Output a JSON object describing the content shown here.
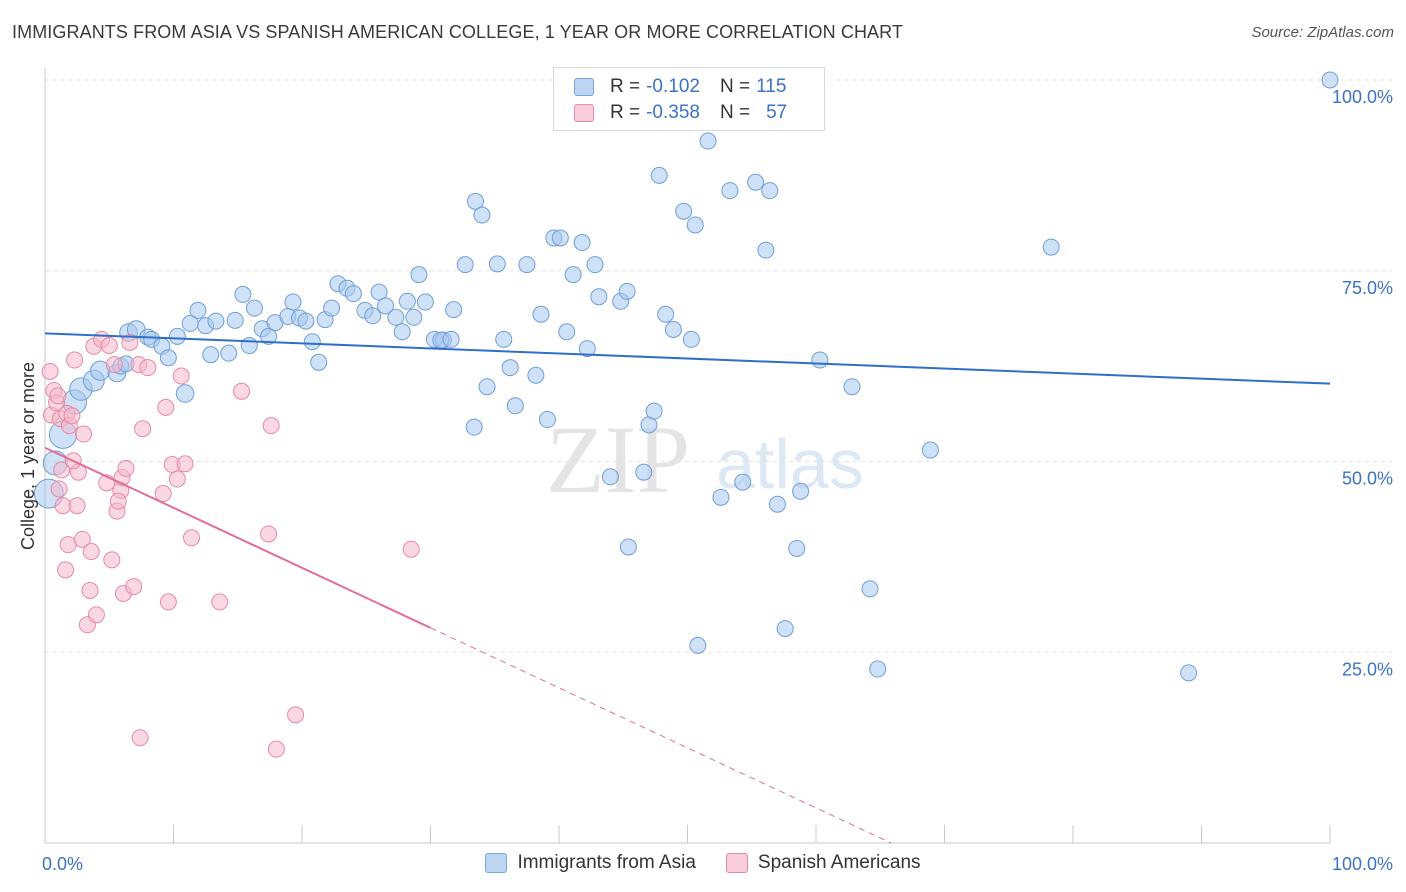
{
  "header": {
    "title": "IMMIGRANTS FROM ASIA VS SPANISH AMERICAN COLLEGE, 1 YEAR OR MORE CORRELATION CHART",
    "source": "Source: ZipAtlas.com"
  },
  "watermark": {
    "zip": "ZIP",
    "atlas": "atlas"
  },
  "stats_legend": {
    "rows": [
      {
        "r_label": "R =",
        "r_value": "-0.102",
        "n_label": "N =",
        "n_value": "115",
        "color": "#a8c8ee"
      },
      {
        "r_label": "R =",
        "r_value": "-0.358",
        "n_label": "N =",
        "n_value": "57",
        "color": "#f5b8cb"
      }
    ]
  },
  "chart_data": {
    "type": "scatter",
    "title": "IMMIGRANTS FROM ASIA VS SPANISH AMERICAN COLLEGE, 1 YEAR OR MORE CORRELATION CHART",
    "xlabel": "",
    "ylabel": "College, 1 year or more",
    "xlim": [
      0,
      100
    ],
    "ylim": [
      0,
      100
    ],
    "x_tick_labels": [
      "0.0%",
      "100.0%"
    ],
    "y_tick_labels": [
      {
        "value": 25,
        "label": "25.0%"
      },
      {
        "value": 50,
        "label": "50.0%"
      },
      {
        "value": 75,
        "label": "75.0%"
      },
      {
        "value": 100,
        "label": "100.0%"
      }
    ],
    "grid": true,
    "legend_position": "bottom",
    "series": [
      {
        "name": "Immigrants from Asia",
        "color": "#a8c8ee",
        "edge": "#6f9fd6",
        "line_color": "#2f6fc8",
        "trend": {
          "x0": 0,
          "y0": 66.8,
          "x1": 100,
          "y1": 60.2,
          "dashed_to": 100
        },
        "points": [
          [
            0.3,
            45.8,
            1.8
          ],
          [
            0.8,
            49.8,
            1.5
          ],
          [
            1.4,
            53.5,
            1.7
          ],
          [
            2.3,
            57.8,
            1.5
          ],
          [
            2.8,
            59.5,
            1.4
          ],
          [
            3.8,
            60.6,
            1.3
          ],
          [
            4.3,
            61.9,
            1.2
          ],
          [
            5.6,
            61.6,
            1.1
          ],
          [
            5.9,
            62.5,
            1.0
          ],
          [
            6.3,
            62.8,
            1.0
          ],
          [
            6.5,
            66.9,
            1.1
          ],
          [
            7.1,
            67.3,
            1.1
          ],
          [
            8.0,
            66.3,
            1.0
          ],
          [
            8.3,
            66.0,
            1.0
          ],
          [
            9.1,
            65.1,
            1.0
          ],
          [
            9.6,
            63.6,
            1.0
          ],
          [
            10.3,
            66.4,
            1.0
          ],
          [
            10.9,
            58.9,
            1.1
          ],
          [
            11.3,
            68.1,
            1.0
          ],
          [
            11.9,
            69.8,
            1.0
          ],
          [
            12.5,
            67.8,
            1.0
          ],
          [
            12.9,
            64.0,
            1.0
          ],
          [
            13.3,
            68.4,
            1.0
          ],
          [
            14.3,
            64.2,
            1.0
          ],
          [
            14.8,
            68.5,
            1.0
          ],
          [
            15.4,
            71.9,
            1.0
          ],
          [
            15.9,
            65.2,
            1.0
          ],
          [
            16.3,
            70.1,
            1.0
          ],
          [
            16.9,
            67.4,
            1.0
          ],
          [
            17.4,
            66.4,
            1.0
          ],
          [
            17.9,
            68.2,
            1.0
          ],
          [
            18.9,
            69.0,
            1.0
          ],
          [
            19.3,
            70.9,
            1.0
          ],
          [
            19.8,
            68.8,
            1.0
          ],
          [
            20.3,
            68.4,
            1.0
          ],
          [
            20.8,
            65.7,
            1.0
          ],
          [
            21.3,
            63.0,
            1.0
          ],
          [
            21.8,
            68.6,
            1.0
          ],
          [
            22.3,
            70.1,
            1.0
          ],
          [
            22.8,
            73.3,
            1.0
          ],
          [
            23.5,
            72.7,
            1.0
          ],
          [
            24.0,
            72.0,
            1.0
          ],
          [
            24.9,
            69.8,
            1.0
          ],
          [
            25.5,
            69.1,
            1.0
          ],
          [
            26.0,
            72.2,
            1.0
          ],
          [
            26.5,
            70.4,
            1.0
          ],
          [
            27.3,
            68.9,
            1.0
          ],
          [
            28.2,
            71.0,
            1.0
          ],
          [
            27.8,
            67.0,
            1.0
          ],
          [
            28.7,
            68.9,
            1.0
          ],
          [
            29.1,
            74.5,
            1.0
          ],
          [
            29.6,
            70.9,
            1.0
          ],
          [
            30.3,
            66.0,
            1.0
          ],
          [
            31.0,
            65.9,
            1.0
          ],
          [
            30.8,
            65.9,
            1.0
          ],
          [
            31.8,
            69.9,
            1.0
          ],
          [
            31.6,
            66.0,
            1.0
          ],
          [
            32.7,
            75.8,
            1.0
          ],
          [
            33.5,
            84.1,
            1.0
          ],
          [
            34.0,
            82.3,
            1.0
          ],
          [
            34.4,
            59.8,
            1.0
          ],
          [
            33.4,
            54.5,
            1.0
          ],
          [
            35.2,
            75.9,
            1.0
          ],
          [
            35.7,
            66.0,
            1.0
          ],
          [
            36.2,
            62.3,
            1.0
          ],
          [
            36.6,
            57.3,
            1.0
          ],
          [
            37.5,
            75.8,
            1.0
          ],
          [
            38.2,
            61.3,
            1.0
          ],
          [
            38.6,
            69.3,
            1.0
          ],
          [
            39.1,
            55.5,
            1.0
          ],
          [
            39.6,
            79.3,
            1.0
          ],
          [
            40.1,
            79.3,
            1.0
          ],
          [
            40.6,
            67.0,
            1.0
          ],
          [
            41.1,
            74.5,
            1.0
          ],
          [
            41.8,
            78.7,
            1.0
          ],
          [
            42.2,
            64.8,
            1.0
          ],
          [
            42.8,
            75.8,
            1.0
          ],
          [
            43.1,
            71.6,
            1.0
          ],
          [
            44.0,
            48.0,
            1.0
          ],
          [
            44.8,
            71.0,
            1.0
          ],
          [
            45.3,
            72.3,
            1.0
          ],
          [
            45.4,
            38.8,
            1.0
          ],
          [
            46.6,
            48.6,
            1.0
          ],
          [
            47.0,
            54.8,
            1.0
          ],
          [
            47.4,
            56.6,
            1.0
          ],
          [
            47.8,
            87.5,
            1.0
          ],
          [
            48.3,
            69.3,
            1.0
          ],
          [
            48.9,
            67.3,
            1.0
          ],
          [
            49.7,
            82.8,
            1.0
          ],
          [
            50.3,
            66.0,
            1.0
          ],
          [
            50.6,
            81.0,
            1.0
          ],
          [
            50.8,
            25.9,
            1.0
          ],
          [
            51.6,
            92.0,
            1.0
          ],
          [
            52.6,
            45.3,
            1.0
          ],
          [
            53.3,
            85.5,
            1.0
          ],
          [
            54.3,
            47.3,
            1.0
          ],
          [
            55.3,
            86.6,
            1.0
          ],
          [
            56.1,
            77.7,
            1.0
          ],
          [
            56.4,
            85.5,
            1.0
          ],
          [
            57.0,
            44.4,
            1.0
          ],
          [
            57.6,
            28.1,
            1.0
          ],
          [
            58.5,
            38.6,
            1.0
          ],
          [
            58.8,
            46.1,
            1.0
          ],
          [
            60.3,
            63.3,
            1.0
          ],
          [
            62.8,
            59.8,
            1.0
          ],
          [
            64.2,
            33.3,
            1.0
          ],
          [
            64.8,
            22.8,
            1.0
          ],
          [
            68.9,
            51.5,
            1.0
          ],
          [
            78.3,
            78.1,
            1.0
          ],
          [
            89.0,
            22.3,
            1.0
          ],
          [
            100.0,
            100.0,
            1.0
          ]
        ]
      },
      {
        "name": "Spanish Americans",
        "color": "#f5b8cb",
        "edge": "#e58aa6",
        "line_color": "#e06f98",
        "trend": {
          "x0": 0,
          "y0": 51.8,
          "x1": 30,
          "y1": 28.2,
          "dashed_to": 100
        },
        "points": [
          [
            0.4,
            61.8,
            1.0
          ],
          [
            0.5,
            56.1,
            1.0
          ],
          [
            0.7,
            59.3,
            1.0
          ],
          [
            0.9,
            57.7,
            1.0
          ],
          [
            1.0,
            58.6,
            1.0
          ],
          [
            1.2,
            55.6,
            1.0
          ],
          [
            1.3,
            48.9,
            1.0
          ],
          [
            1.4,
            44.2,
            1.0
          ],
          [
            1.6,
            35.8,
            1.0
          ],
          [
            1.7,
            56.3,
            1.0
          ],
          [
            1.8,
            39.1,
            1.0
          ],
          [
            1.9,
            54.7,
            1.0
          ],
          [
            2.1,
            56.0,
            1.0
          ],
          [
            2.3,
            63.3,
            1.0
          ],
          [
            2.5,
            44.2,
            1.0
          ],
          [
            2.6,
            48.6,
            1.0
          ],
          [
            2.9,
            39.8,
            1.0
          ],
          [
            3.0,
            53.6,
            1.0
          ],
          [
            3.3,
            28.6,
            1.0
          ],
          [
            3.5,
            33.1,
            1.0
          ],
          [
            3.6,
            38.2,
            1.0
          ],
          [
            3.8,
            65.1,
            1.0
          ],
          [
            4.0,
            29.9,
            1.0
          ],
          [
            4.4,
            66.0,
            1.0
          ],
          [
            4.8,
            47.2,
            1.0
          ],
          [
            5.0,
            65.2,
            1.0
          ],
          [
            5.2,
            37.1,
            1.0
          ],
          [
            5.4,
            62.7,
            1.0
          ],
          [
            5.6,
            43.5,
            1.0
          ],
          [
            5.9,
            46.2,
            1.0
          ],
          [
            6.0,
            47.9,
            1.0
          ],
          [
            6.1,
            32.7,
            1.0
          ],
          [
            6.3,
            49.1,
            1.0
          ],
          [
            6.6,
            65.6,
            1.0
          ],
          [
            6.9,
            33.6,
            1.0
          ],
          [
            7.3,
            62.7,
            1.0
          ],
          [
            7.6,
            54.3,
            1.0
          ],
          [
            7.4,
            13.8,
            1.0
          ],
          [
            8.0,
            62.3,
            1.0
          ],
          [
            9.2,
            45.8,
            1.0
          ],
          [
            9.4,
            57.1,
            1.0
          ],
          [
            9.6,
            31.6,
            1.0
          ],
          [
            9.9,
            49.6,
            1.0
          ],
          [
            10.3,
            47.7,
            1.0
          ],
          [
            10.6,
            61.2,
            1.0
          ],
          [
            10.9,
            49.7,
            1.0
          ],
          [
            11.4,
            40.0,
            1.0
          ],
          [
            13.6,
            31.6,
            1.0
          ],
          [
            15.3,
            59.2,
            1.0
          ],
          [
            17.6,
            54.7,
            1.0
          ],
          [
            17.4,
            40.5,
            1.0
          ],
          [
            18.0,
            12.3,
            1.0
          ],
          [
            19.5,
            16.8,
            1.0
          ],
          [
            28.5,
            38.5,
            1.0
          ],
          [
            5.7,
            44.8,
            1.0
          ],
          [
            1.1,
            46.4,
            1.0
          ],
          [
            2.2,
            50.1,
            1.0
          ]
        ]
      }
    ]
  },
  "bottom_legend": [
    {
      "label": "Immigrants from Asia",
      "color": "#a8c8ee",
      "edge": "#6f9fd6"
    },
    {
      "label": "Spanish Americans",
      "color": "#f5b8cb",
      "edge": "#e58aa6"
    }
  ]
}
